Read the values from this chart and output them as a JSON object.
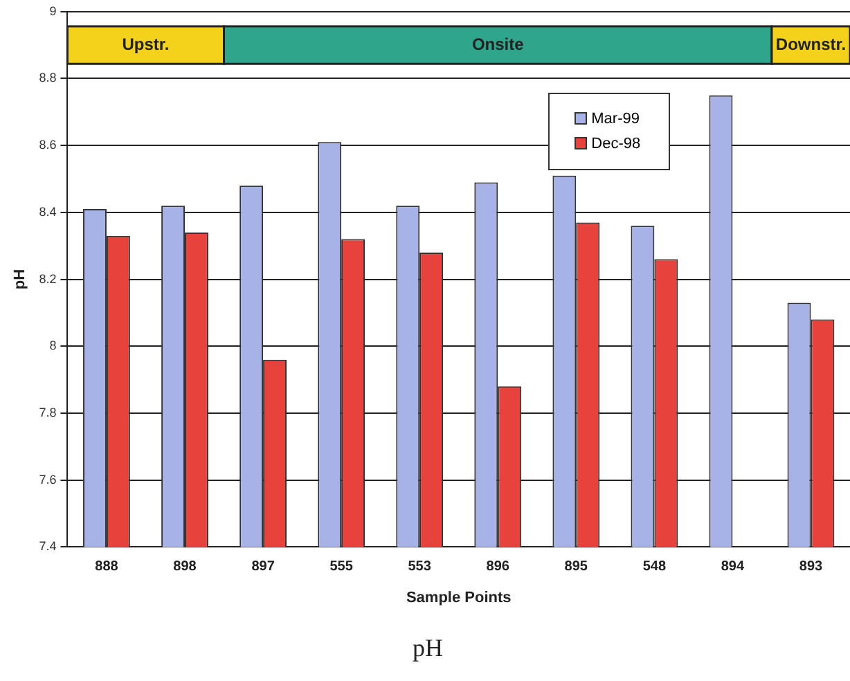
{
  "chart_data": {
    "type": "bar",
    "title": "pH",
    "xlabel": "Sample Points",
    "ylabel": "pH",
    "categories": [
      "888",
      "898",
      "897",
      "555",
      "553",
      "896",
      "895",
      "548",
      "894",
      "893"
    ],
    "series": [
      {
        "name": "Mar-99",
        "color": "#a7b3e6",
        "values": [
          8.41,
          8.42,
          8.48,
          8.61,
          8.42,
          8.49,
          8.51,
          8.36,
          8.75,
          8.13
        ]
      },
      {
        "name": "Dec-98",
        "color": "#e8423c",
        "values": [
          8.33,
          8.34,
          7.96,
          8.32,
          8.28,
          7.88,
          8.37,
          8.26,
          null,
          8.08
        ]
      }
    ],
    "ylim": [
      7.4,
      9
    ],
    "yticks": [
      7.4,
      7.6,
      7.8,
      8,
      8.2,
      8.4,
      8.6,
      8.8,
      9
    ],
    "bands": [
      {
        "axis": "x",
        "from": "888",
        "to": "898",
        "label": "Upstr.",
        "color": "#f4d21c"
      },
      {
        "axis": "x",
        "from": "897",
        "to": "894",
        "label": "Onsite",
        "color": "#2fa68c"
      },
      {
        "axis": "x",
        "from": "893",
        "to": "893",
        "label": "Downstr.",
        "color": "#f4d21c"
      }
    ],
    "grid": "y",
    "legend": "top right"
  }
}
